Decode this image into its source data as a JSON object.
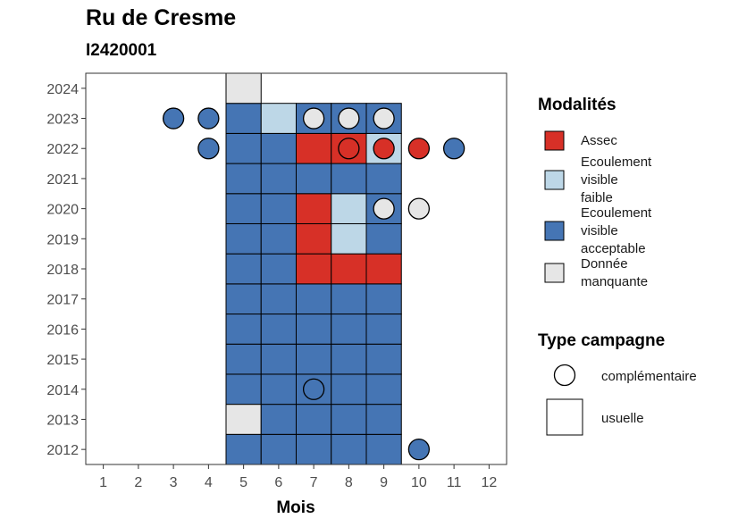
{
  "title": "Ru de Cresme",
  "subtitle": "I2420001",
  "chart_data": {
    "type": "heatmap",
    "title": "Ru de Cresme",
    "subtitle": "I2420001",
    "xlabel": "Mois",
    "ylabel": "",
    "x_ticks": [
      "1",
      "2",
      "3",
      "4",
      "5",
      "6",
      "7",
      "8",
      "9",
      "10",
      "11",
      "12"
    ],
    "y_ticks": [
      "2012",
      "2013",
      "2014",
      "2015",
      "2016",
      "2017",
      "2018",
      "2019",
      "2020",
      "2021",
      "2022",
      "2023",
      "2024"
    ],
    "xlim": [
      0.5,
      12.5
    ],
    "ylim": [
      2011.5,
      2024.5
    ],
    "colors": {
      "Assec": "#d73027",
      "Ecoulement visible faible": "#bdd7e7",
      "Ecoulement visible acceptable": "#4575b4",
      "Donnée manquante": "#e6e6e6"
    },
    "legend_fill": {
      "title": "Modalités",
      "entries": [
        {
          "key": "Assec",
          "lines": [
            "Assec"
          ]
        },
        {
          "key": "Ecoulement visible faible",
          "lines": [
            "Ecoulement",
            "visible",
            "faible"
          ]
        },
        {
          "key": "Ecoulement visible acceptable",
          "lines": [
            "Ecoulement",
            "visible",
            "acceptable"
          ]
        },
        {
          "key": "Donnée manquante",
          "lines": [
            "Donnée",
            "manquante"
          ]
        }
      ]
    },
    "legend_shape": {
      "title": "Type campagne",
      "entries": [
        {
          "shape": "circle",
          "label": "complémentaire"
        },
        {
          "shape": "square",
          "label": "usuelle"
        }
      ]
    },
    "usuelle": [
      {
        "year": 2012,
        "month": 5,
        "v": "Ecoulement visible acceptable"
      },
      {
        "year": 2012,
        "month": 6,
        "v": "Ecoulement visible acceptable"
      },
      {
        "year": 2012,
        "month": 7,
        "v": "Ecoulement visible acceptable"
      },
      {
        "year": 2012,
        "month": 8,
        "v": "Ecoulement visible acceptable"
      },
      {
        "year": 2012,
        "month": 9,
        "v": "Ecoulement visible acceptable"
      },
      {
        "year": 2013,
        "month": 5,
        "v": "Donnée manquante"
      },
      {
        "year": 2013,
        "month": 6,
        "v": "Ecoulement visible acceptable"
      },
      {
        "year": 2013,
        "month": 7,
        "v": "Ecoulement visible acceptable"
      },
      {
        "year": 2013,
        "month": 8,
        "v": "Ecoulement visible acceptable"
      },
      {
        "year": 2013,
        "month": 9,
        "v": "Ecoulement visible acceptable"
      },
      {
        "year": 2014,
        "month": 5,
        "v": "Ecoulement visible acceptable"
      },
      {
        "year": 2014,
        "month": 6,
        "v": "Ecoulement visible acceptable"
      },
      {
        "year": 2014,
        "month": 7,
        "v": "Ecoulement visible acceptable"
      },
      {
        "year": 2014,
        "month": 8,
        "v": "Ecoulement visible acceptable"
      },
      {
        "year": 2014,
        "month": 9,
        "v": "Ecoulement visible acceptable"
      },
      {
        "year": 2015,
        "month": 5,
        "v": "Ecoulement visible acceptable"
      },
      {
        "year": 2015,
        "month": 6,
        "v": "Ecoulement visible acceptable"
      },
      {
        "year": 2015,
        "month": 7,
        "v": "Ecoulement visible acceptable"
      },
      {
        "year": 2015,
        "month": 8,
        "v": "Ecoulement visible acceptable"
      },
      {
        "year": 2015,
        "month": 9,
        "v": "Ecoulement visible acceptable"
      },
      {
        "year": 2016,
        "month": 5,
        "v": "Ecoulement visible acceptable"
      },
      {
        "year": 2016,
        "month": 6,
        "v": "Ecoulement visible acceptable"
      },
      {
        "year": 2016,
        "month": 7,
        "v": "Ecoulement visible acceptable"
      },
      {
        "year": 2016,
        "month": 8,
        "v": "Ecoulement visible acceptable"
      },
      {
        "year": 2016,
        "month": 9,
        "v": "Ecoulement visible acceptable"
      },
      {
        "year": 2017,
        "month": 5,
        "v": "Ecoulement visible acceptable"
      },
      {
        "year": 2017,
        "month": 6,
        "v": "Ecoulement visible acceptable"
      },
      {
        "year": 2017,
        "month": 7,
        "v": "Ecoulement visible acceptable"
      },
      {
        "year": 2017,
        "month": 8,
        "v": "Ecoulement visible acceptable"
      },
      {
        "year": 2017,
        "month": 9,
        "v": "Ecoulement visible acceptable"
      },
      {
        "year": 2018,
        "month": 5,
        "v": "Ecoulement visible acceptable"
      },
      {
        "year": 2018,
        "month": 6,
        "v": "Ecoulement visible acceptable"
      },
      {
        "year": 2018,
        "month": 7,
        "v": "Assec"
      },
      {
        "year": 2018,
        "month": 8,
        "v": "Assec"
      },
      {
        "year": 2018,
        "month": 9,
        "v": "Assec"
      },
      {
        "year": 2019,
        "month": 5,
        "v": "Ecoulement visible acceptable"
      },
      {
        "year": 2019,
        "month": 6,
        "v": "Ecoulement visible acceptable"
      },
      {
        "year": 2019,
        "month": 7,
        "v": "Assec"
      },
      {
        "year": 2019,
        "month": 8,
        "v": "Ecoulement visible faible"
      },
      {
        "year": 2019,
        "month": 9,
        "v": "Ecoulement visible acceptable"
      },
      {
        "year": 2020,
        "month": 5,
        "v": "Ecoulement visible acceptable"
      },
      {
        "year": 2020,
        "month": 6,
        "v": "Ecoulement visible acceptable"
      },
      {
        "year": 2020,
        "month": 7,
        "v": "Assec"
      },
      {
        "year": 2020,
        "month": 8,
        "v": "Ecoulement visible faible"
      },
      {
        "year": 2020,
        "month": 9,
        "v": "Ecoulement visible acceptable"
      },
      {
        "year": 2021,
        "month": 5,
        "v": "Ecoulement visible acceptable"
      },
      {
        "year": 2021,
        "month": 6,
        "v": "Ecoulement visible acceptable"
      },
      {
        "year": 2021,
        "month": 7,
        "v": "Ecoulement visible acceptable"
      },
      {
        "year": 2021,
        "month": 8,
        "v": "Ecoulement visible acceptable"
      },
      {
        "year": 2021,
        "month": 9,
        "v": "Ecoulement visible acceptable"
      },
      {
        "year": 2022,
        "month": 5,
        "v": "Ecoulement visible acceptable"
      },
      {
        "year": 2022,
        "month": 6,
        "v": "Ecoulement visible acceptable"
      },
      {
        "year": 2022,
        "month": 7,
        "v": "Assec"
      },
      {
        "year": 2022,
        "month": 8,
        "v": "Assec"
      },
      {
        "year": 2022,
        "month": 9,
        "v": "Ecoulement visible faible"
      },
      {
        "year": 2023,
        "month": 5,
        "v": "Ecoulement visible acceptable"
      },
      {
        "year": 2023,
        "month": 6,
        "v": "Ecoulement visible faible"
      },
      {
        "year": 2023,
        "month": 7,
        "v": "Ecoulement visible acceptable"
      },
      {
        "year": 2023,
        "month": 8,
        "v": "Ecoulement visible acceptable"
      },
      {
        "year": 2023,
        "month": 9,
        "v": "Ecoulement visible acceptable"
      },
      {
        "year": 2024,
        "month": 5,
        "v": "Donnée manquante"
      }
    ],
    "complementaire": [
      {
        "year": 2012,
        "month": 10,
        "v": "Ecoulement visible acceptable"
      },
      {
        "year": 2014,
        "month": 7,
        "v": "Ecoulement visible acceptable"
      },
      {
        "year": 2020,
        "month": 9,
        "v": "Donnée manquante"
      },
      {
        "year": 2020,
        "month": 10,
        "v": "Donnée manquante"
      },
      {
        "year": 2022,
        "month": 4,
        "v": "Ecoulement visible acceptable"
      },
      {
        "year": 2022,
        "month": 8,
        "v": "Assec"
      },
      {
        "year": 2022,
        "month": 9,
        "v": "Assec"
      },
      {
        "year": 2022,
        "month": 10,
        "v": "Assec"
      },
      {
        "year": 2022,
        "month": 11,
        "v": "Ecoulement visible acceptable"
      },
      {
        "year": 2023,
        "month": 3,
        "v": "Ecoulement visible acceptable"
      },
      {
        "year": 2023,
        "month": 4,
        "v": "Ecoulement visible acceptable"
      },
      {
        "year": 2023,
        "month": 7,
        "v": "Donnée manquante"
      },
      {
        "year": 2023,
        "month": 8,
        "v": "Donnée manquante"
      },
      {
        "year": 2023,
        "month": 9,
        "v": "Donnée manquante"
      }
    ]
  }
}
